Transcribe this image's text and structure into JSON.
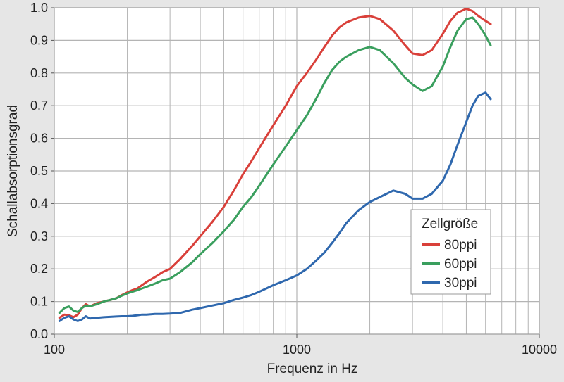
{
  "chart_data": {
    "type": "line",
    "title": "",
    "xlabel": "Frequenz in Hz",
    "ylabel": "Schallabsorptionsgrad",
    "xscale": "log",
    "xlim": [
      100,
      10000
    ],
    "ylim": [
      0,
      1.0
    ],
    "grid": true,
    "background_color": "#e6e6e6",
    "plot_color": "#ffffff",
    "grid_color": "#b4b4b4",
    "x_ticks": [
      100,
      1000,
      10000
    ],
    "x_tick_labels": [
      "100",
      "1000",
      "10000"
    ],
    "y_ticks": [
      0,
      0.1,
      0.2,
      0.3,
      0.4,
      0.5,
      0.6,
      0.7,
      0.8,
      0.9,
      1.0
    ],
    "y_tick_labels": [
      "0.0",
      "0.1",
      "0.2",
      "0.3",
      "0.4",
      "0.5",
      "0.6",
      "0.7",
      "0.8",
      "0.9",
      "1.0"
    ],
    "legend": {
      "title": "Zellgröße",
      "placement": "lower-right"
    },
    "series": [
      {
        "name": "80ppi",
        "color": "#d9403a",
        "x": [
          105,
          110,
          115,
          120,
          125,
          130,
          135,
          140,
          150,
          160,
          170,
          180,
          190,
          200,
          210,
          220,
          230,
          240,
          260,
          280,
          300,
          330,
          370,
          400,
          450,
          500,
          550,
          600,
          650,
          700,
          800,
          900,
          1000,
          1100,
          1200,
          1300,
          1400,
          1500,
          1600,
          1800,
          2000,
          2200,
          2500,
          2800,
          3000,
          3300,
          3600,
          4000,
          4300,
          4600,
          5000,
          5300,
          5600,
          6000,
          6300
        ],
        "y": [
          0.05,
          0.06,
          0.058,
          0.052,
          0.06,
          0.08,
          0.092,
          0.085,
          0.095,
          0.1,
          0.105,
          0.11,
          0.12,
          0.128,
          0.135,
          0.14,
          0.15,
          0.16,
          0.175,
          0.19,
          0.2,
          0.23,
          0.27,
          0.3,
          0.345,
          0.39,
          0.44,
          0.49,
          0.53,
          0.57,
          0.64,
          0.7,
          0.76,
          0.8,
          0.84,
          0.88,
          0.915,
          0.94,
          0.955,
          0.97,
          0.975,
          0.965,
          0.93,
          0.885,
          0.86,
          0.855,
          0.87,
          0.92,
          0.96,
          0.985,
          0.997,
          0.99,
          0.975,
          0.96,
          0.95
        ]
      },
      {
        "name": "60ppi",
        "color": "#3a9f5e",
        "x": [
          105,
          110,
          115,
          120,
          125,
          130,
          135,
          140,
          150,
          160,
          170,
          180,
          190,
          200,
          210,
          220,
          230,
          240,
          260,
          280,
          300,
          330,
          370,
          400,
          450,
          500,
          550,
          600,
          650,
          700,
          800,
          900,
          1000,
          1100,
          1200,
          1300,
          1400,
          1500,
          1600,
          1800,
          2000,
          2200,
          2500,
          2800,
          3000,
          3300,
          3600,
          4000,
          4300,
          4600,
          5000,
          5300,
          5600,
          6000,
          6300
        ],
        "y": [
          0.065,
          0.08,
          0.085,
          0.072,
          0.068,
          0.08,
          0.088,
          0.085,
          0.092,
          0.1,
          0.105,
          0.11,
          0.118,
          0.125,
          0.13,
          0.135,
          0.14,
          0.145,
          0.155,
          0.165,
          0.17,
          0.19,
          0.22,
          0.245,
          0.28,
          0.315,
          0.35,
          0.39,
          0.42,
          0.455,
          0.52,
          0.575,
          0.625,
          0.67,
          0.72,
          0.77,
          0.81,
          0.835,
          0.85,
          0.87,
          0.88,
          0.87,
          0.83,
          0.785,
          0.765,
          0.745,
          0.76,
          0.82,
          0.88,
          0.93,
          0.965,
          0.97,
          0.95,
          0.915,
          0.885
        ]
      },
      {
        "name": "30ppi",
        "color": "#2f68ae",
        "x": [
          105,
          110,
          115,
          120,
          125,
          130,
          135,
          140,
          150,
          160,
          170,
          180,
          190,
          200,
          210,
          220,
          230,
          240,
          260,
          280,
          300,
          330,
          370,
          400,
          450,
          500,
          550,
          600,
          650,
          700,
          800,
          900,
          1000,
          1100,
          1200,
          1300,
          1400,
          1500,
          1600,
          1800,
          2000,
          2200,
          2500,
          2800,
          3000,
          3300,
          3600,
          4000,
          4300,
          4600,
          5000,
          5300,
          5600,
          6000,
          6300
        ],
        "y": [
          0.04,
          0.05,
          0.055,
          0.045,
          0.04,
          0.045,
          0.055,
          0.048,
          0.05,
          0.052,
          0.053,
          0.054,
          0.055,
          0.055,
          0.056,
          0.058,
          0.06,
          0.06,
          0.062,
          0.062,
          0.063,
          0.065,
          0.075,
          0.08,
          0.088,
          0.095,
          0.105,
          0.112,
          0.12,
          0.13,
          0.15,
          0.165,
          0.18,
          0.2,
          0.225,
          0.25,
          0.28,
          0.31,
          0.34,
          0.38,
          0.405,
          0.42,
          0.44,
          0.43,
          0.415,
          0.415,
          0.43,
          0.47,
          0.52,
          0.58,
          0.65,
          0.7,
          0.73,
          0.74,
          0.72
        ]
      }
    ]
  }
}
